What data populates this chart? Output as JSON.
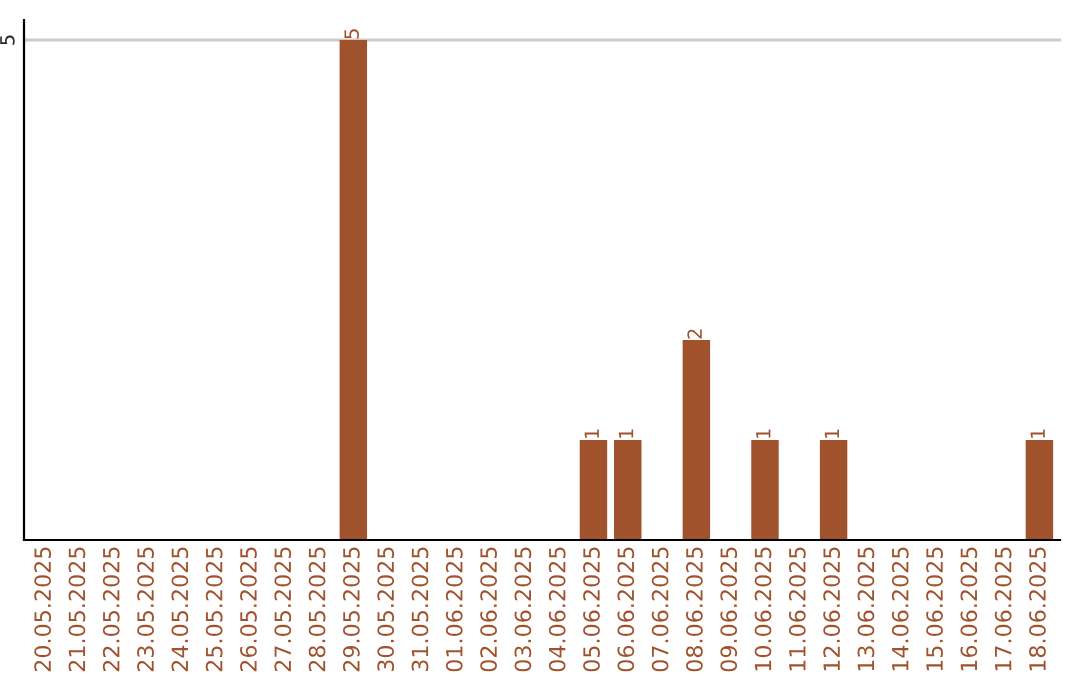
{
  "chart_data": {
    "type": "bar",
    "categories": [
      "20.05.2025",
      "21.05.2025",
      "22.05.2025",
      "23.05.2025",
      "24.05.2025",
      "25.05.2025",
      "26.05.2025",
      "27.05.2025",
      "28.05.2025",
      "29.05.2025",
      "30.05.2025",
      "31.05.2025",
      "01.06.2025",
      "02.06.2025",
      "03.06.2025",
      "04.06.2025",
      "05.06.2025",
      "06.06.2025",
      "07.06.2025",
      "08.06.2025",
      "09.06.2025",
      "10.06.2025",
      "11.06.2025",
      "12.06.2025",
      "13.06.2025",
      "14.06.2025",
      "15.06.2025",
      "16.06.2025",
      "17.06.2025",
      "18.06.2025"
    ],
    "values": [
      0,
      0,
      0,
      0,
      0,
      0,
      0,
      0,
      0,
      5,
      0,
      0,
      0,
      0,
      0,
      0,
      1,
      1,
      0,
      2,
      0,
      1,
      0,
      1,
      0,
      0,
      0,
      0,
      0,
      1
    ],
    "value_labels": [
      null,
      null,
      null,
      null,
      null,
      null,
      null,
      null,
      null,
      "5",
      null,
      null,
      null,
      null,
      null,
      null,
      "1",
      "1",
      null,
      "2",
      null,
      "1",
      null,
      "1",
      null,
      null,
      null,
      null,
      null,
      "1"
    ],
    "color": "#a0522d",
    "ylim": [
      0,
      5.2
    ],
    "yticks": [
      5
    ],
    "grid": "y"
  }
}
